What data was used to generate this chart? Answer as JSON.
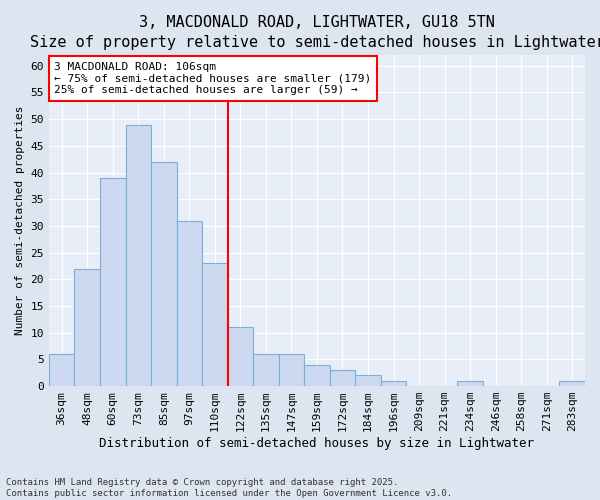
{
  "title": "3, MACDONALD ROAD, LIGHTWATER, GU18 5TN",
  "subtitle": "Size of property relative to semi-detached houses in Lightwater",
  "xlabel": "Distribution of semi-detached houses by size in Lightwater",
  "ylabel": "Number of semi-detached properties",
  "bin_labels": [
    "36sqm",
    "48sqm",
    "60sqm",
    "73sqm",
    "85sqm",
    "97sqm",
    "110sqm",
    "122sqm",
    "135sqm",
    "147sqm",
    "159sqm",
    "172sqm",
    "184sqm",
    "196sqm",
    "209sqm",
    "221sqm",
    "234sqm",
    "246sqm",
    "258sqm",
    "271sqm",
    "283sqm"
  ],
  "bin_values": [
    6,
    22,
    39,
    49,
    42,
    31,
    23,
    11,
    6,
    6,
    4,
    3,
    2,
    1,
    0,
    0,
    1,
    0,
    0,
    0,
    1
  ],
  "bar_color": "#ccd9f0",
  "bar_edge_color": "#7bafd4",
  "vline_x_index": 6,
  "vline_color": "red",
  "annotation_title": "3 MACDONALD ROAD: 106sqm",
  "annotation_line1": "← 75% of semi-detached houses are smaller (179)",
  "annotation_line2": "25% of semi-detached houses are larger (59) →",
  "ylim": [
    0,
    62
  ],
  "yticks": [
    0,
    5,
    10,
    15,
    20,
    25,
    30,
    35,
    40,
    45,
    50,
    55,
    60
  ],
  "footnote": "Contains HM Land Registry data © Crown copyright and database right 2025.\nContains public sector information licensed under the Open Government Licence v3.0.",
  "bg_color": "#dde5f0",
  "plot_bg_color": "#e8eef8",
  "grid_color": "#ffffff",
  "title_fontsize": 11,
  "subtitle_fontsize": 9.5,
  "xlabel_fontsize": 9,
  "ylabel_fontsize": 8,
  "tick_fontsize": 8,
  "annot_fontsize": 8
}
